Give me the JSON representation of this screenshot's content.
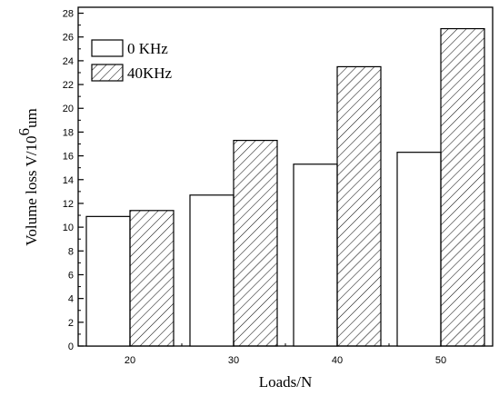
{
  "chart_data": {
    "type": "bar",
    "xlabel": "Loads/N",
    "ylabel_main": "Volume loss V/10",
    "ylabel_exponent": "6",
    "ylabel_unit": "um",
    "categories": [
      "20",
      "30",
      "40",
      "50"
    ],
    "series": [
      {
        "name": "0 KHz",
        "values": [
          10.9,
          12.7,
          15.3,
          16.3
        ],
        "fill": "white"
      },
      {
        "name": "40KHz",
        "values": [
          11.4,
          17.3,
          23.5,
          26.7
        ],
        "fill": "hatched"
      }
    ],
    "ylim": [
      0,
      28.5
    ],
    "yticks": [
      0,
      2,
      4,
      6,
      8,
      10,
      12,
      14,
      16,
      18,
      20,
      22,
      24,
      26,
      28
    ],
    "grid": false,
    "legend_position": "top-left",
    "colors": {
      "stroke": "#000000",
      "background": "#ffffff"
    }
  }
}
